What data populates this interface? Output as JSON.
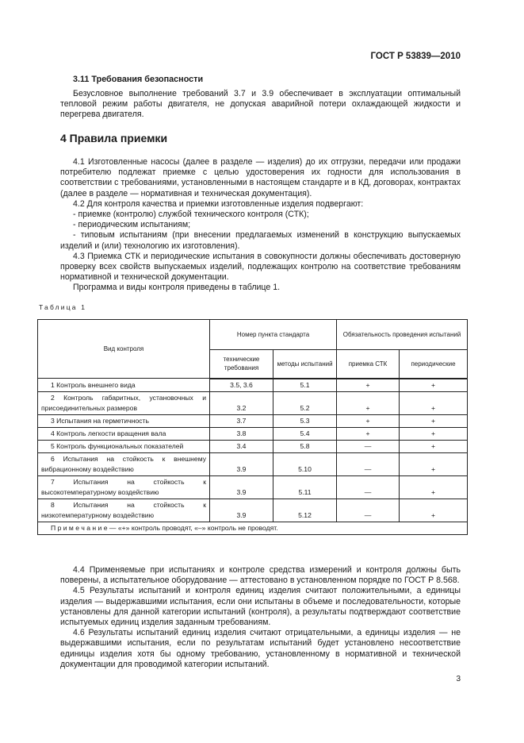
{
  "header": {
    "standard": "ГОСТ Р 53839—2010"
  },
  "section_3_11": {
    "title": "3.11  Требования безопасности",
    "text": "Безусловное выполнение требований 3.7 и 3.9 обеспечивает в эксплуатации оптимальный тепловой режим работы двигателя, не допуская аварийной потери охлаждающей жидкости и перегрева двигателя."
  },
  "section_4": {
    "title": "4  Правила приемки",
    "p4_1": "4.1  Изготовленные насосы (далее в разделе — изделия) до их отгрузки, передачи или продажи потребителю подлежат приемке с целью удостоверения их годности для использования в соответствии с требованиями, установленными в настоящем стандарте и в КД, договорах, контрактах (далее в разделе — нормативная и техническая документация).",
    "p4_2": "4.2  Для контроля качества и приемки изготовленные изделия подвергают:",
    "list": [
      "- приемке (контролю) службой технического контроля (СТК);",
      "- периодическим испытаниям;",
      "- типовым испытаниям (при внесении предлагаемых изменений в конструкцию выпускаемых изделий и (или) технологию их изготовления)."
    ],
    "p4_3": "4.3  Приемка СТК и периодические испытания в совокупности должны обеспечивать достоверную проверку всех свойств выпускаемых изделий, подлежащих контролю на соответствие требованиям нормативной и технической документации.",
    "p_program": "Программа и виды контроля приведены в таблице 1.",
    "p4_4": "4.4  Применяемые при испытаниях и контроле средства измерений и контроля должны быть поверены, а испытательное оборудование — аттестовано в установленном порядке по ГОСТ Р 8.568.",
    "p4_5": "4.5  Результаты испытаний и контроля единиц изделия считают положительными, а единицы изделия — выдержавшими испытания, если они испытаны в объеме и последовательности, которые установлены для данной категории испытаний (контроля), а результаты подтверждают соответствие испытуемых единиц изделия заданным требованиям.",
    "p4_6": "4.6  Результаты испытаний единиц изделия считают отрицательными, а единицы изделия — не выдержавшими испытания, если по результатам испытаний будет установлено несоответствие единицы изделия хотя бы одному требованию, установленному в нормативной и технической документации для проводимой категории испытаний."
  },
  "table": {
    "caption": "Таблица 1",
    "headers": {
      "kind": "Вид контроля",
      "clause_group": "Номер пункта стандарта",
      "tech": "технические требования",
      "methods": "методы испытаний",
      "oblig_group": "Обязательность проведения испытаний",
      "stk": "приемка СТК",
      "periodic": "периодические"
    },
    "rows": [
      [
        "1  Контроль внешнего вида",
        "3.5, 3.6",
        "5.1",
        "+",
        "+"
      ],
      [
        "2  Контроль габаритных, установочных и присоединительных размеров",
        "3.2",
        "5.2",
        "+",
        "+"
      ],
      [
        "3  Испытания на герметичность",
        "3.7",
        "5.3",
        "+",
        "+"
      ],
      [
        "4  Контроль легкости вращения вала",
        "3.8",
        "5.4",
        "+",
        "+"
      ],
      [
        "5  Контроль функциональных показателей",
        "3.4",
        "5.8",
        "—",
        "+"
      ],
      [
        "6  Испытания на стойкость к внешнему вибрационному воздействию",
        "3.9",
        "5.10",
        "—",
        "+"
      ],
      [
        "7  Испытания на стойкость к высокотемпературному воздействию",
        "3.9",
        "5.11",
        "—",
        "+"
      ],
      [
        "8  Испытания на стойкость к низкотемпературному воздействию",
        "3.9",
        "5.12",
        "—",
        "+"
      ]
    ],
    "note": "П р и м е ч а н и е — «+» контроль проводят, «–» контроль не проводят."
  },
  "page_number": "3"
}
